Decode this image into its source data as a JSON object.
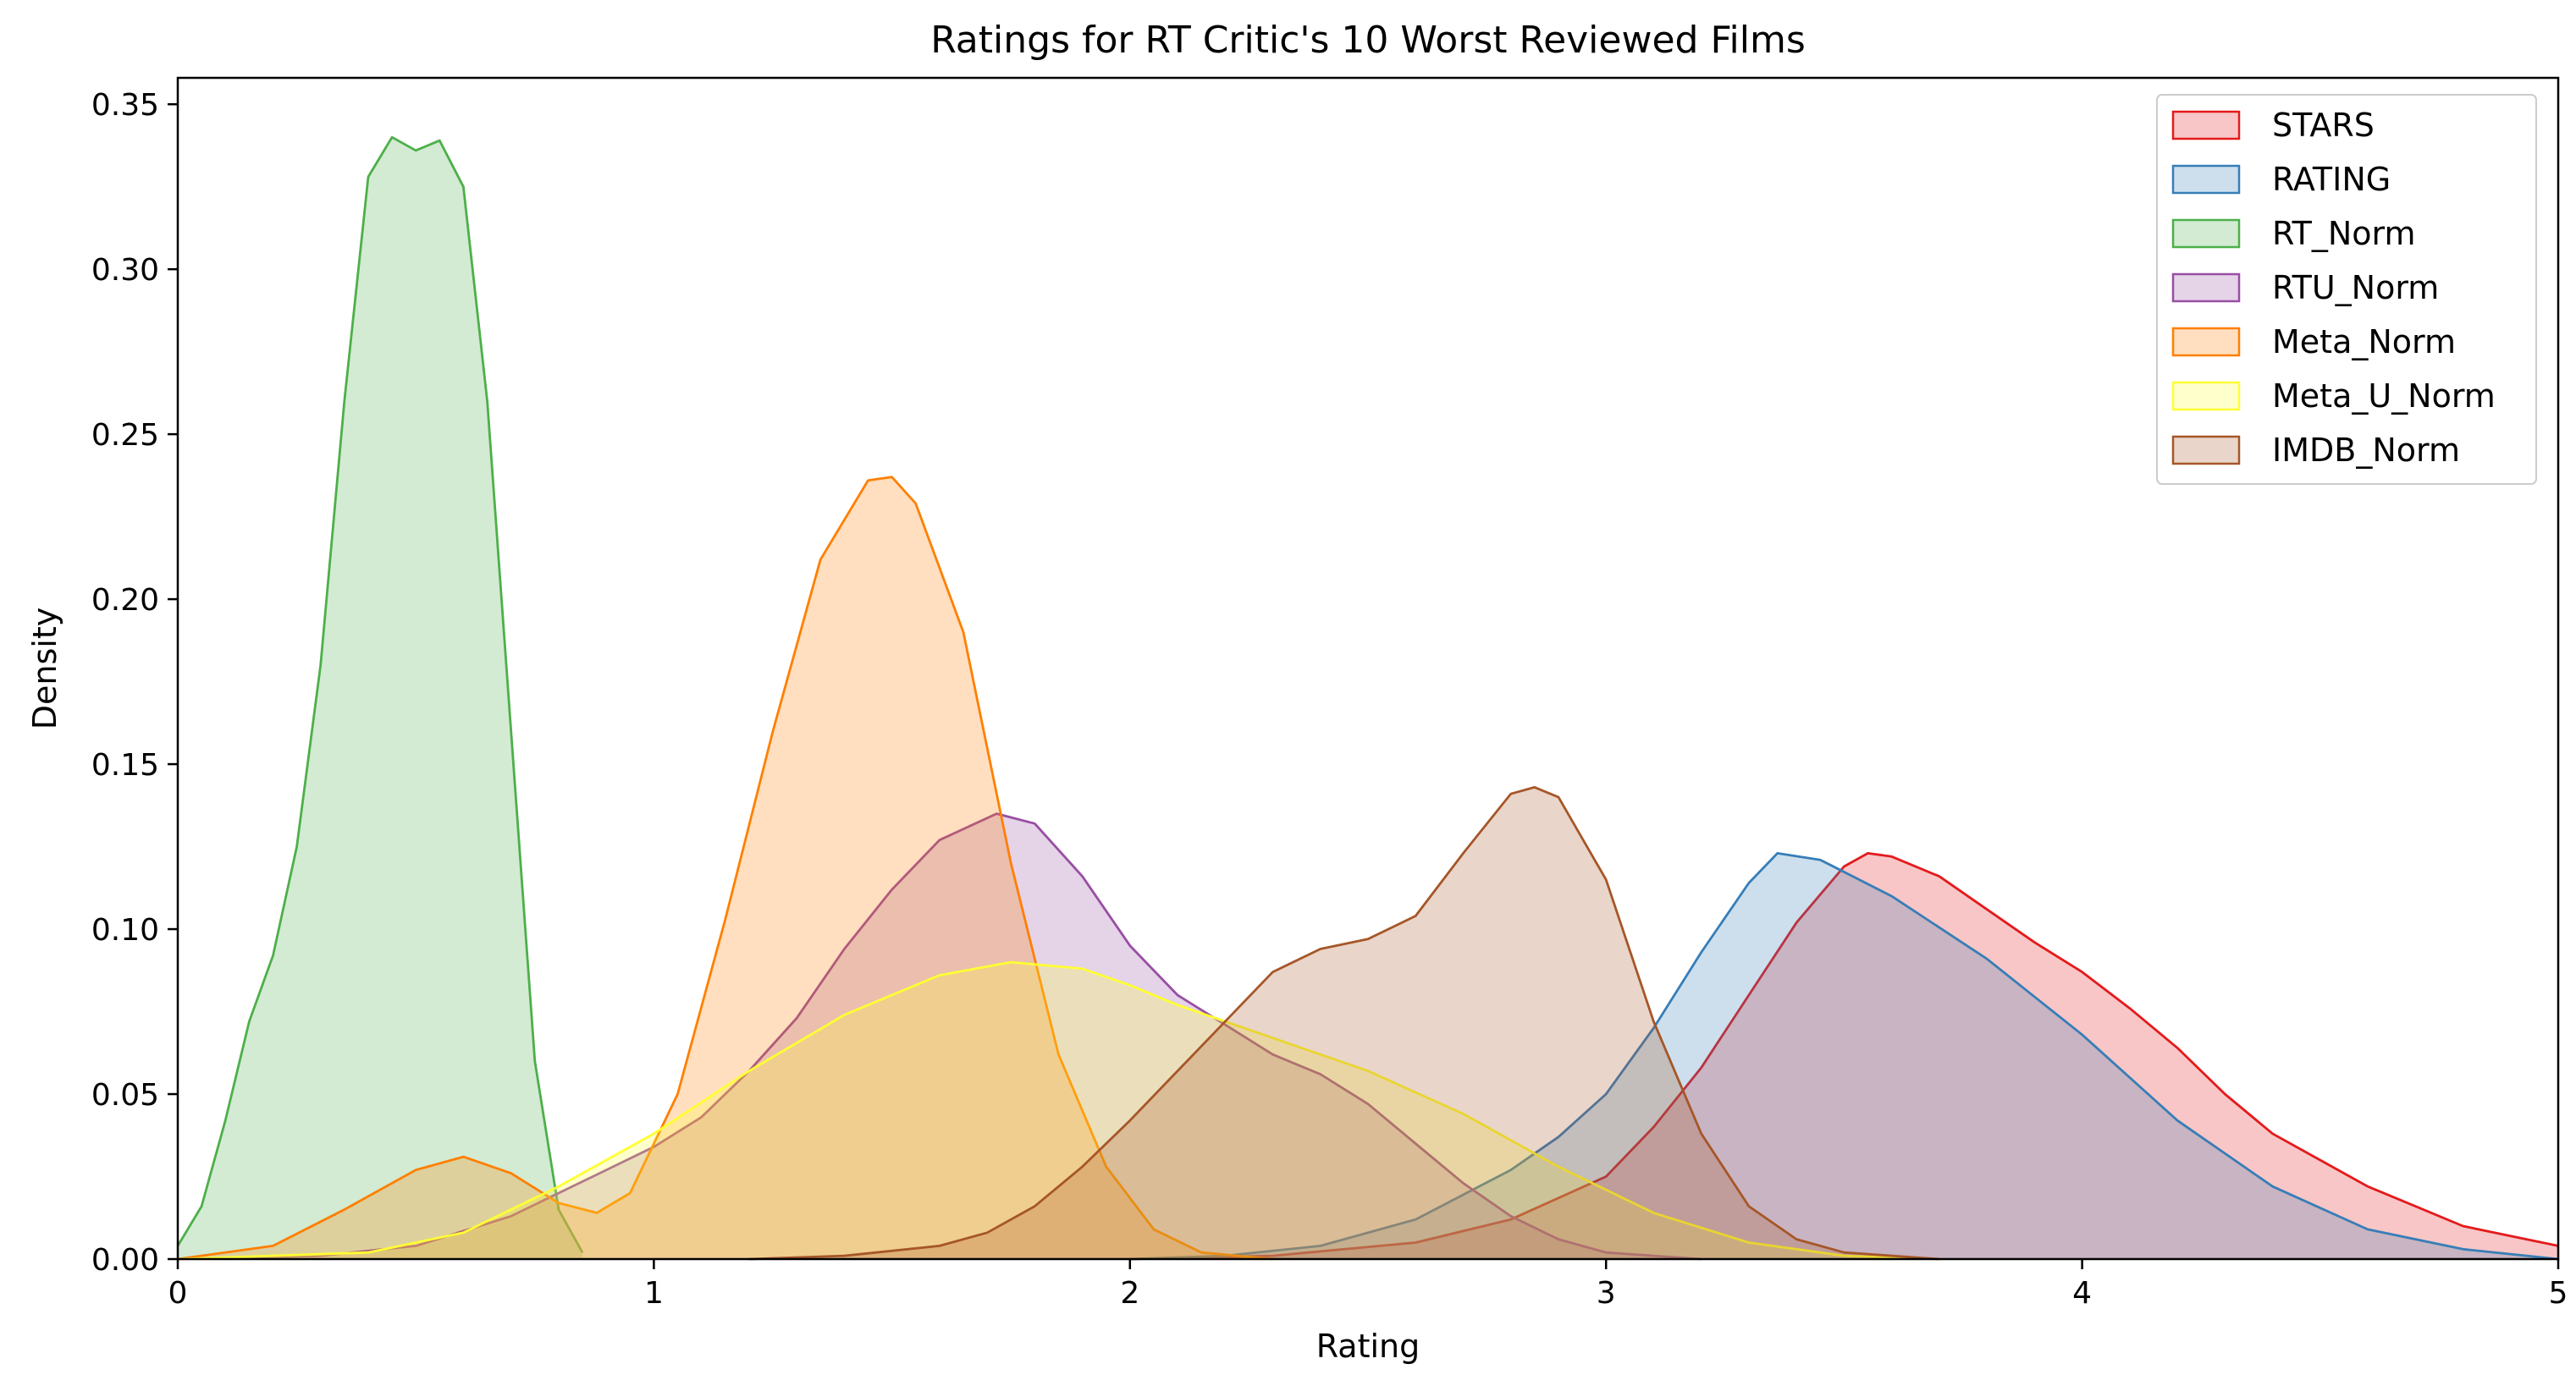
{
  "chart_data": {
    "type": "area",
    "title": "Ratings for RT Critic's 10 Worst Reviewed Films",
    "xlabel": "Rating",
    "ylabel": "Density",
    "xlim": [
      0,
      5
    ],
    "ylim": [
      0,
      0.358
    ],
    "x_ticks": [
      {
        "value": 0,
        "label": "0"
      },
      {
        "value": 1,
        "label": "1"
      },
      {
        "value": 2,
        "label": "2"
      },
      {
        "value": 3,
        "label": "3"
      },
      {
        "value": 4,
        "label": "4"
      },
      {
        "value": 5,
        "label": "5"
      }
    ],
    "y_ticks": [
      {
        "value": 0,
        "label": "0.00"
      },
      {
        "value": 0.05,
        "label": "0.05"
      },
      {
        "value": 0.1,
        "label": "0.10"
      },
      {
        "value": 0.15,
        "label": "0.15"
      },
      {
        "value": 0.2,
        "label": "0.20"
      },
      {
        "value": 0.25,
        "label": "0.25"
      },
      {
        "value": 0.3,
        "label": "0.30"
      },
      {
        "value": 0.35,
        "label": "0.35"
      }
    ],
    "grid": false,
    "legend_position": "top-right",
    "series": [
      {
        "name": "STARS",
        "color": "#e41a1c",
        "points": [
          [
            2.0,
            0.0
          ],
          [
            2.3,
            0.001
          ],
          [
            2.6,
            0.005
          ],
          [
            2.8,
            0.012
          ],
          [
            3.0,
            0.025
          ],
          [
            3.1,
            0.04
          ],
          [
            3.2,
            0.058
          ],
          [
            3.3,
            0.08
          ],
          [
            3.4,
            0.102
          ],
          [
            3.5,
            0.119
          ],
          [
            3.55,
            0.123
          ],
          [
            3.6,
            0.122
          ],
          [
            3.7,
            0.116
          ],
          [
            3.8,
            0.106
          ],
          [
            3.9,
            0.096
          ],
          [
            4.0,
            0.087
          ],
          [
            4.1,
            0.076
          ],
          [
            4.2,
            0.064
          ],
          [
            4.3,
            0.05
          ],
          [
            4.4,
            0.038
          ],
          [
            4.5,
            0.03
          ],
          [
            4.6,
            0.022
          ],
          [
            4.7,
            0.016
          ],
          [
            4.8,
            0.01
          ],
          [
            4.9,
            0.007
          ],
          [
            5.0,
            0.004
          ]
        ]
      },
      {
        "name": "RATING",
        "color": "#377eb8",
        "points": [
          [
            2.0,
            0.0
          ],
          [
            2.2,
            0.001
          ],
          [
            2.4,
            0.004
          ],
          [
            2.6,
            0.012
          ],
          [
            2.8,
            0.027
          ],
          [
            2.9,
            0.037
          ],
          [
            3.0,
            0.05
          ],
          [
            3.1,
            0.07
          ],
          [
            3.2,
            0.093
          ],
          [
            3.3,
            0.114
          ],
          [
            3.36,
            0.123
          ],
          [
            3.45,
            0.121
          ],
          [
            3.6,
            0.11
          ],
          [
            3.8,
            0.091
          ],
          [
            4.0,
            0.068
          ],
          [
            4.2,
            0.042
          ],
          [
            4.4,
            0.022
          ],
          [
            4.6,
            0.009
          ],
          [
            4.8,
            0.003
          ],
          [
            5.0,
            0.0
          ]
        ]
      },
      {
        "name": "RT_Norm",
        "color": "#4daf4a",
        "points": [
          [
            0.0,
            0.004
          ],
          [
            0.05,
            0.016
          ],
          [
            0.1,
            0.042
          ],
          [
            0.15,
            0.072
          ],
          [
            0.2,
            0.092
          ],
          [
            0.25,
            0.125
          ],
          [
            0.3,
            0.18
          ],
          [
            0.35,
            0.26
          ],
          [
            0.4,
            0.328
          ],
          [
            0.45,
            0.34
          ],
          [
            0.5,
            0.336
          ],
          [
            0.55,
            0.339
          ],
          [
            0.6,
            0.325
          ],
          [
            0.65,
            0.26
          ],
          [
            0.7,
            0.16
          ],
          [
            0.75,
            0.06
          ],
          [
            0.8,
            0.015
          ],
          [
            0.85,
            0.002
          ]
        ]
      },
      {
        "name": "RTU_Norm",
        "color": "#984ea3",
        "points": [
          [
            0.0,
            0.0
          ],
          [
            0.3,
            0.001
          ],
          [
            0.5,
            0.004
          ],
          [
            0.7,
            0.013
          ],
          [
            0.9,
            0.027
          ],
          [
            1.0,
            0.034
          ],
          [
            1.1,
            0.043
          ],
          [
            1.2,
            0.057
          ],
          [
            1.3,
            0.073
          ],
          [
            1.4,
            0.094
          ],
          [
            1.5,
            0.112
          ],
          [
            1.6,
            0.127
          ],
          [
            1.72,
            0.135
          ],
          [
            1.8,
            0.132
          ],
          [
            1.9,
            0.116
          ],
          [
            2.0,
            0.095
          ],
          [
            2.1,
            0.08
          ],
          [
            2.2,
            0.071
          ],
          [
            2.3,
            0.062
          ],
          [
            2.4,
            0.056
          ],
          [
            2.5,
            0.047
          ],
          [
            2.6,
            0.035
          ],
          [
            2.7,
            0.023
          ],
          [
            2.8,
            0.013
          ],
          [
            2.9,
            0.006
          ],
          [
            3.0,
            0.002
          ],
          [
            3.2,
            0.0
          ]
        ]
      },
      {
        "name": "Meta_Norm",
        "color": "#ff7f00",
        "points": [
          [
            0.0,
            0.0
          ],
          [
            0.2,
            0.004
          ],
          [
            0.35,
            0.015
          ],
          [
            0.5,
            0.027
          ],
          [
            0.6,
            0.031
          ],
          [
            0.7,
            0.026
          ],
          [
            0.8,
            0.017
          ],
          [
            0.88,
            0.014
          ],
          [
            0.95,
            0.02
          ],
          [
            1.05,
            0.05
          ],
          [
            1.15,
            0.103
          ],
          [
            1.25,
            0.16
          ],
          [
            1.35,
            0.212
          ],
          [
            1.45,
            0.236
          ],
          [
            1.5,
            0.237
          ],
          [
            1.55,
            0.229
          ],
          [
            1.65,
            0.19
          ],
          [
            1.75,
            0.12
          ],
          [
            1.85,
            0.062
          ],
          [
            1.95,
            0.028
          ],
          [
            2.05,
            0.009
          ],
          [
            2.15,
            0.002
          ],
          [
            2.3,
            0.0
          ]
        ]
      },
      {
        "name": "Meta_U_Norm",
        "color": "#ffff33",
        "points": [
          [
            0.0,
            0.0
          ],
          [
            0.4,
            0.002
          ],
          [
            0.6,
            0.008
          ],
          [
            0.8,
            0.022
          ],
          [
            1.0,
            0.038
          ],
          [
            1.2,
            0.057
          ],
          [
            1.4,
            0.074
          ],
          [
            1.6,
            0.086
          ],
          [
            1.75,
            0.09
          ],
          [
            1.9,
            0.088
          ],
          [
            2.0,
            0.083
          ],
          [
            2.1,
            0.077
          ],
          [
            2.3,
            0.067
          ],
          [
            2.5,
            0.057
          ],
          [
            2.7,
            0.044
          ],
          [
            2.9,
            0.028
          ],
          [
            3.1,
            0.014
          ],
          [
            3.3,
            0.005
          ],
          [
            3.5,
            0.001
          ],
          [
            3.7,
            0.0
          ]
        ]
      },
      {
        "name": "IMDB_Norm",
        "color": "#a65628",
        "points": [
          [
            1.2,
            0.0
          ],
          [
            1.4,
            0.001
          ],
          [
            1.6,
            0.004
          ],
          [
            1.7,
            0.008
          ],
          [
            1.8,
            0.016
          ],
          [
            1.9,
            0.028
          ],
          [
            2.0,
            0.042
          ],
          [
            2.1,
            0.057
          ],
          [
            2.2,
            0.072
          ],
          [
            2.3,
            0.087
          ],
          [
            2.4,
            0.094
          ],
          [
            2.5,
            0.097
          ],
          [
            2.6,
            0.104
          ],
          [
            2.7,
            0.123
          ],
          [
            2.8,
            0.141
          ],
          [
            2.85,
            0.143
          ],
          [
            2.9,
            0.14
          ],
          [
            3.0,
            0.115
          ],
          [
            3.1,
            0.072
          ],
          [
            3.2,
            0.038
          ],
          [
            3.3,
            0.016
          ],
          [
            3.4,
            0.006
          ],
          [
            3.5,
            0.002
          ],
          [
            3.7,
            0.0
          ]
        ]
      }
    ]
  }
}
